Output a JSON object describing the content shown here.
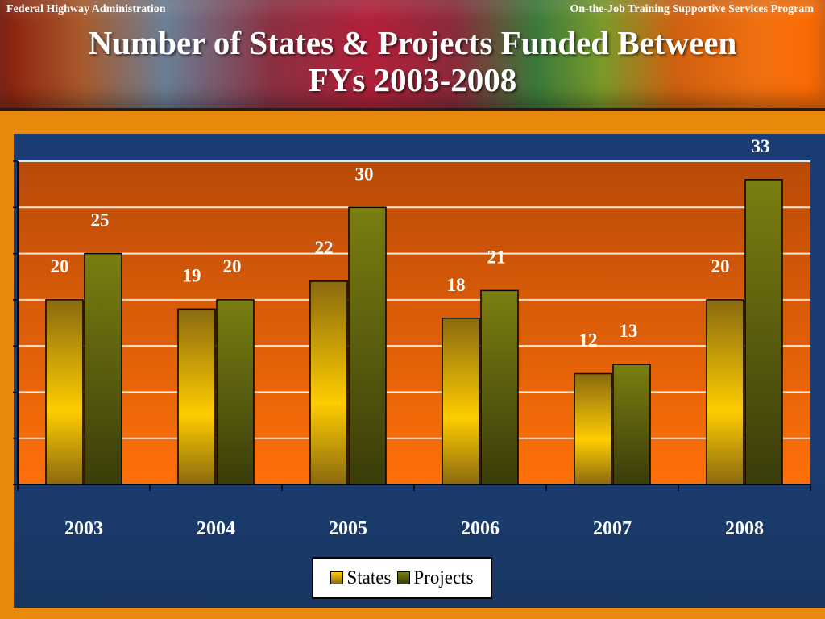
{
  "header": {
    "left": "Federal Highway Administration",
    "right": "On-the-Job Training Supportive Services Program",
    "title_line1": "Number of States & Projects Funded Between",
    "title_line2": "FYs 2003-2008"
  },
  "colors": {
    "plot_bg_top": "#b84a07",
    "plot_bg_bottom": "#ff7009",
    "states_light": "#ffcc00",
    "states_dark": "#8a6a10",
    "projects_light": "#7b7e10",
    "projects_dark": "#3a3c0a",
    "panel_bg": "#1c3d74",
    "frame": "#e8890b"
  },
  "chart_data": {
    "type": "bar",
    "categories": [
      "2003",
      "2004",
      "2005",
      "2006",
      "2007",
      "2008"
    ],
    "series": [
      {
        "name": "States",
        "values": [
          20,
          19,
          22,
          18,
          12,
          20
        ]
      },
      {
        "name": "Projects",
        "values": [
          25,
          20,
          30,
          21,
          13,
          33
        ]
      }
    ],
    "ylim": [
      0,
      35
    ],
    "ytick_step": 5,
    "grid": true,
    "legend": "bottom-center",
    "title": "Number of States & Projects Funded Between FYs 2003-2008"
  }
}
